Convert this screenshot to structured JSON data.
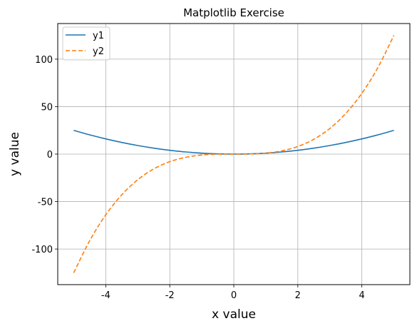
{
  "chart_data": {
    "type": "line",
    "title": "Matplotlib Exercise",
    "xlabel": "x value",
    "ylabel": "y value",
    "xlim": [
      -5.5,
      5.5
    ],
    "ylim": [
      -137.5,
      137.5
    ],
    "xticks": [
      -4,
      -2,
      0,
      2,
      4
    ],
    "yticks": [
      -100,
      -50,
      0,
      50,
      100
    ],
    "grid": true,
    "legend": "top-left",
    "x": [
      -5,
      -4.5,
      -4,
      -3.5,
      -3,
      -2.5,
      -2,
      -1.5,
      -1,
      -0.5,
      0,
      0.5,
      1,
      1.5,
      2,
      2.5,
      3,
      3.5,
      4,
      4.5,
      5
    ],
    "series": [
      {
        "name": "y1",
        "color": "#1f77b4",
        "style": "solid",
        "values": [
          25,
          20.25,
          16,
          12.25,
          9,
          6.25,
          4,
          2.25,
          1,
          0.25,
          0,
          0.25,
          1,
          2.25,
          4,
          6.25,
          9,
          12.25,
          16,
          20.25,
          25
        ]
      },
      {
        "name": "y2",
        "color": "#ff7f0e",
        "style": "dashed",
        "values": [
          -125,
          -91.1,
          -64,
          -42.9,
          -27,
          -15.6,
          -8,
          -3.4,
          -1,
          -0.1,
          0,
          0.1,
          1,
          3.4,
          8,
          15.6,
          27,
          42.9,
          64,
          91.1,
          125
        ]
      }
    ]
  }
}
